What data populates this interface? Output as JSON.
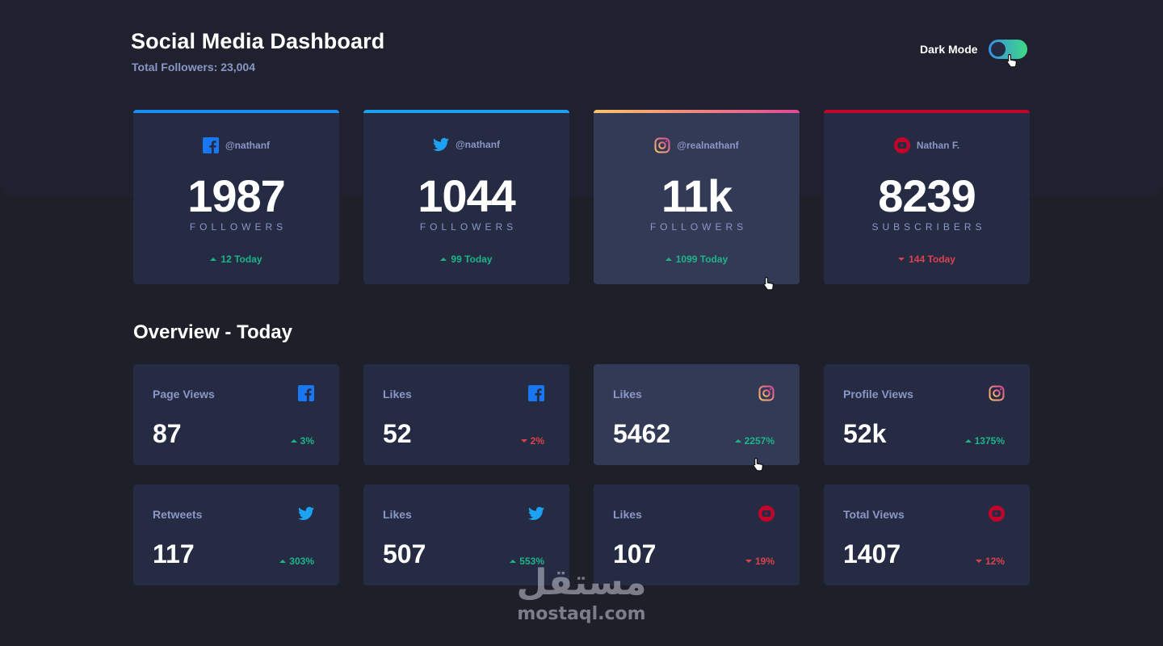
{
  "header": {
    "title": "Social Media Dashboard",
    "total_followers": "Total Followers: 23,004",
    "dark_mode_label": "Dark Mode",
    "dark_mode_on": true
  },
  "colors": {
    "facebook": "#1877f2",
    "twitter": "#1da1f2",
    "instagram_gradient": [
      "#fdc468",
      "#df4996"
    ],
    "youtube": "#c4032a",
    "up": "#1db489",
    "down": "#dc414c"
  },
  "follower_cards": [
    {
      "platform": "facebook",
      "icon": "facebook-icon",
      "handle": "@nathanf",
      "count": "1987",
      "unit": "FOLLOWERS",
      "change": "12 Today",
      "direction": "up"
    },
    {
      "platform": "twitter",
      "icon": "twitter-icon",
      "handle": "@nathanf",
      "count": "1044",
      "unit": "FOLLOWERS",
      "change": "99 Today",
      "direction": "up"
    },
    {
      "platform": "instagram",
      "icon": "instagram-icon",
      "handle": "@realnathanf",
      "count": "11k",
      "unit": "FOLLOWERS",
      "change": "1099 Today",
      "direction": "up"
    },
    {
      "platform": "youtube",
      "icon": "youtube-icon",
      "handle": "Nathan F.",
      "count": "8239",
      "unit": "SUBSCRIBERS",
      "change": "144 Today",
      "direction": "down"
    }
  ],
  "overview": {
    "title": "Overview - Today",
    "tiles": [
      {
        "label": "Page Views",
        "platform": "facebook",
        "value": "87",
        "change": "3%",
        "direction": "up"
      },
      {
        "label": "Likes",
        "platform": "facebook",
        "value": "52",
        "change": "2%",
        "direction": "down"
      },
      {
        "label": "Likes",
        "platform": "instagram",
        "value": "5462",
        "change": "2257%",
        "direction": "up"
      },
      {
        "label": "Profile Views",
        "platform": "instagram",
        "value": "52k",
        "change": "1375%",
        "direction": "up"
      },
      {
        "label": "Retweets",
        "platform": "twitter",
        "value": "117",
        "change": "303%",
        "direction": "up"
      },
      {
        "label": "Likes",
        "platform": "twitter",
        "value": "507",
        "change": "553%",
        "direction": "up"
      },
      {
        "label": "Likes",
        "platform": "youtube",
        "value": "107",
        "change": "19%",
        "direction": "down"
      },
      {
        "label": "Total Views",
        "platform": "youtube",
        "value": "1407",
        "change": "12%",
        "direction": "down"
      }
    ]
  },
  "watermark": {
    "arabic": "مستقل",
    "latin": "mostaql.com"
  }
}
